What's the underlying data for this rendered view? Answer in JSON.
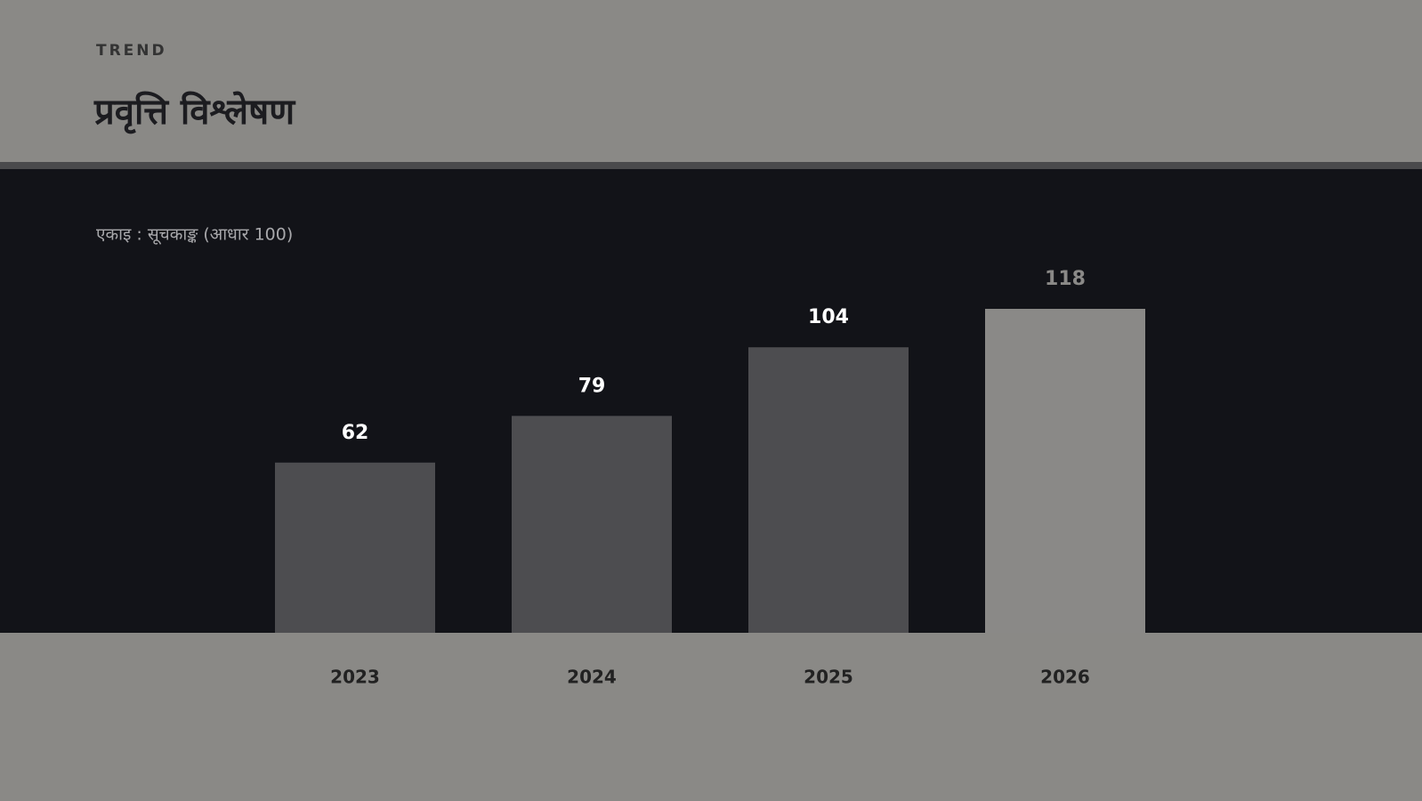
{
  "chart_data": {
    "type": "bar",
    "eyebrow": "TREND",
    "title": "प्रवृत्ति विश्लेषण",
    "subtitle": "एकाइ : सूचकाङ्क (आधार 100)",
    "categories": [
      "2023",
      "2024",
      "2025",
      "2026"
    ],
    "values": [
      62,
      79,
      104,
      118
    ],
    "colors": [
      "#4d4d50",
      "#4d4d50",
      "#4d4d50",
      "#8a8987"
    ],
    "label_colors": [
      "#ffffff",
      "#ffffff",
      "#ffffff",
      "#8a8987"
    ],
    "ylim": [
      0,
      130
    ]
  }
}
